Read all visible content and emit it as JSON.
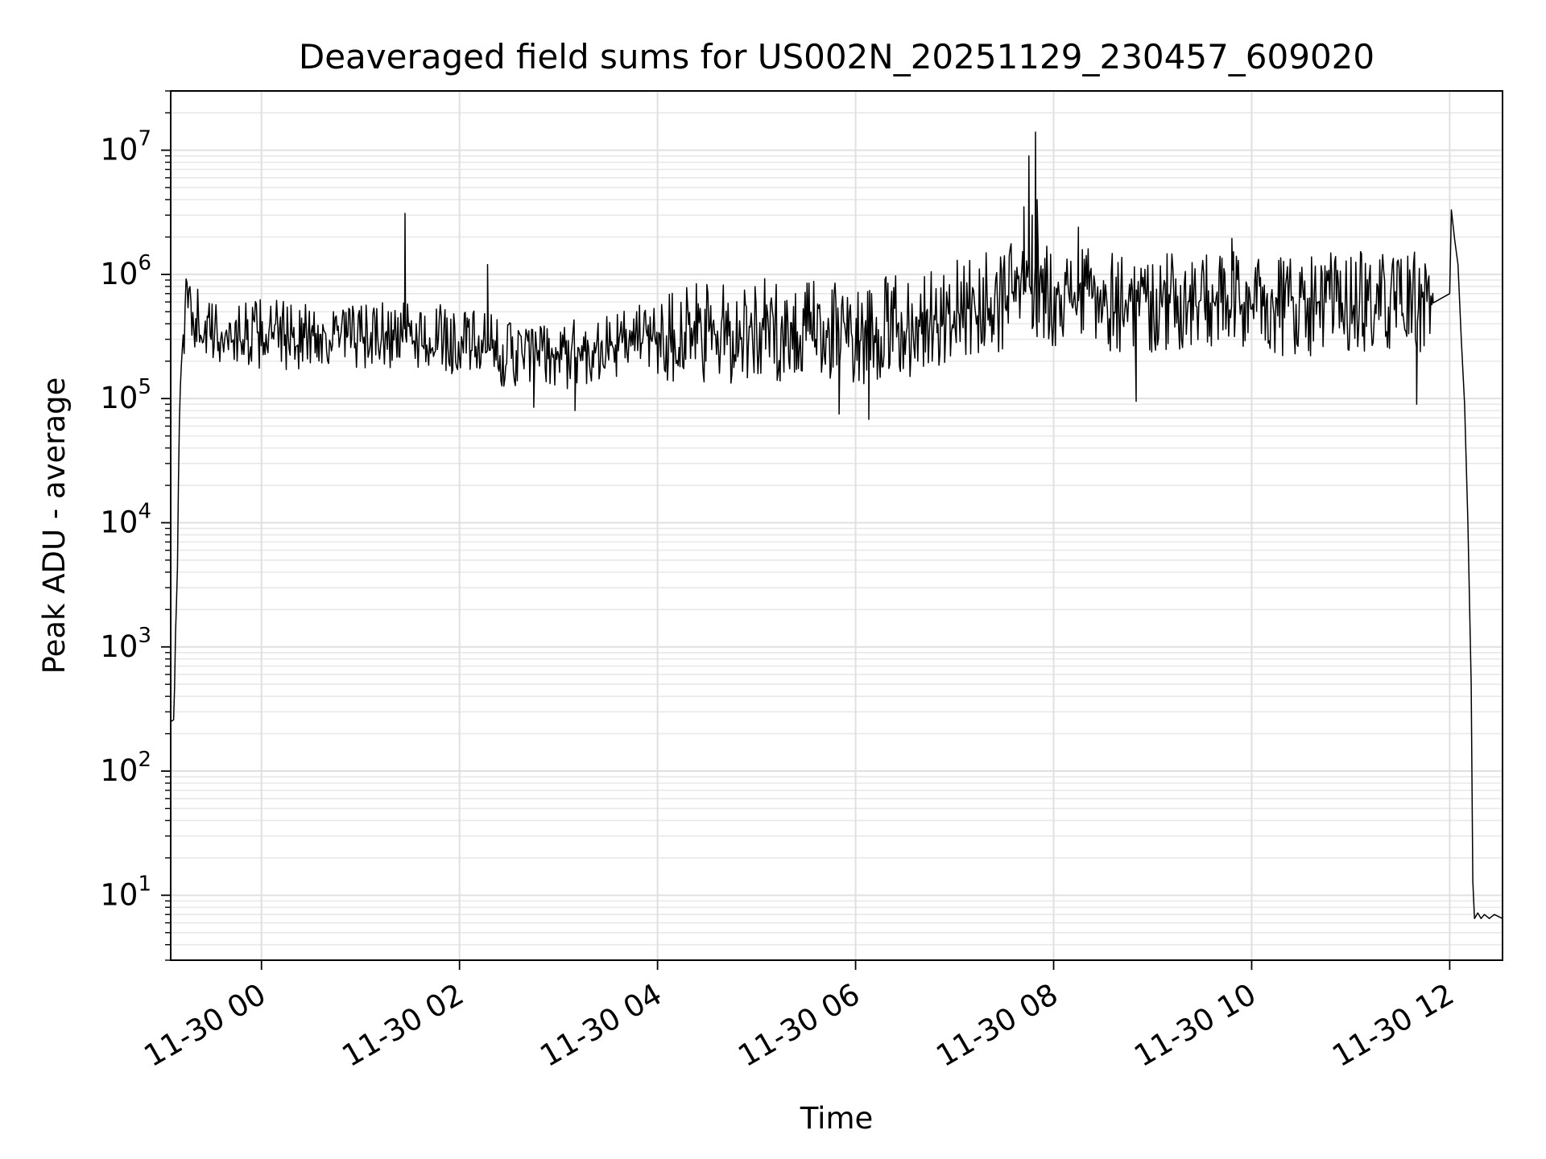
{
  "chart_data": {
    "type": "line",
    "title": "Deaveraged field sums for US002N_20251129_230457_609020",
    "xlabel": "Time",
    "ylabel": "Peak ADU - average",
    "yscale": "log",
    "xlim": [
      "2025-11-29 23:05",
      "2025-11-30 12:32"
    ],
    "ylim": [
      3,
      30000000
    ],
    "grid": true,
    "line_color": "#000000",
    "xticks": [
      {
        "t": "2025-11-30 00:00",
        "label": "11-30 00"
      },
      {
        "t": "2025-11-30 02:00",
        "label": "11-30 02"
      },
      {
        "t": "2025-11-30 04:00",
        "label": "11-30 04"
      },
      {
        "t": "2025-11-30 06:00",
        "label": "11-30 06"
      },
      {
        "t": "2025-11-30 08:00",
        "label": "11-30 08"
      },
      {
        "t": "2025-11-30 10:00",
        "label": "11-30 10"
      },
      {
        "t": "2025-11-30 12:00",
        "label": "11-30 12"
      }
    ],
    "yticks": [
      {
        "value": 10,
        "base": "10",
        "exp": "1"
      },
      {
        "value": 100,
        "base": "10",
        "exp": "2"
      },
      {
        "value": 1000,
        "base": "10",
        "exp": "3"
      },
      {
        "value": 10000,
        "base": "10",
        "exp": "4"
      },
      {
        "value": 100000,
        "base": "10",
        "exp": "5"
      },
      {
        "value": 1000000,
        "base": "10",
        "exp": "6"
      },
      {
        "value": 10000000,
        "base": "10",
        "exp": "7"
      }
    ],
    "series": [
      {
        "style": "noisy",
        "points": [
          {
            "t": "2025-11-29 23:05",
            "v": 250
          },
          {
            "t": "2025-11-29 23:07",
            "v": 260
          },
          {
            "t": "2025-11-29 23:08",
            "v": 1500
          },
          {
            "t": "2025-11-29 23:09",
            "v": 3500
          },
          {
            "t": "2025-11-29 23:10",
            "v": 50000
          },
          {
            "t": "2025-11-29 23:11",
            "v": 150000
          },
          {
            "t": "2025-11-29 23:13",
            "v": 400000
          },
          {
            "t": "2025-11-29 23:15",
            "v": 600000
          },
          {
            "t": "2025-11-29 23:20",
            "v": 450000
          },
          {
            "t": "2025-11-29 23:30",
            "v": 320000
          },
          {
            "t": "2025-11-30 00:00",
            "v": 330000
          },
          {
            "t": "2025-11-30 01:00",
            "v": 310000
          },
          {
            "t": "2025-11-30 01:30",
            "v": 320000
          },
          {
            "t": "2025-11-30 02:00",
            "v": 290000
          },
          {
            "t": "2025-11-30 02:30",
            "v": 230000
          },
          {
            "t": "2025-11-30 03:00",
            "v": 220000
          },
          {
            "t": "2025-11-30 03:30",
            "v": 260000
          },
          {
            "t": "2025-11-30 04:00",
            "v": 340000
          },
          {
            "t": "2025-11-30 04:30",
            "v": 320000
          },
          {
            "t": "2025-11-30 05:00",
            "v": 360000
          },
          {
            "t": "2025-11-30 05:30",
            "v": 350000
          },
          {
            "t": "2025-11-30 06:00",
            "v": 340000
          },
          {
            "t": "2025-11-30 06:30",
            "v": 380000
          },
          {
            "t": "2025-11-30 07:00",
            "v": 500000
          },
          {
            "t": "2025-11-30 07:30",
            "v": 620000
          },
          {
            "t": "2025-11-30 07:40",
            "v": 750000
          },
          {
            "t": "2025-11-30 08:30",
            "v": 620000
          },
          {
            "t": "2025-11-30 09:00",
            "v": 600000
          },
          {
            "t": "2025-11-30 10:00",
            "v": 580000
          },
          {
            "t": "2025-11-30 11:00",
            "v": 580000
          },
          {
            "t": "2025-11-30 11:50",
            "v": 590000
          }
        ]
      },
      {
        "style": "exact",
        "points": [
          {
            "t": "2025-11-30 11:50",
            "v": 590000
          },
          {
            "t": "2025-11-30 12:00",
            "v": 700000
          },
          {
            "t": "2025-11-30 12:01",
            "v": 3300000
          },
          {
            "t": "2025-11-30 12:03",
            "v": 1900000
          },
          {
            "t": "2025-11-30 12:05",
            "v": 1200000
          },
          {
            "t": "2025-11-30 12:07",
            "v": 300000
          },
          {
            "t": "2025-11-30 12:09",
            "v": 90000
          },
          {
            "t": "2025-11-30 12:11",
            "v": 10000
          },
          {
            "t": "2025-11-30 12:13",
            "v": 500
          },
          {
            "t": "2025-11-30 12:14",
            "v": 13
          },
          {
            "t": "2025-11-30 12:15",
            "v": 6.5
          },
          {
            "t": "2025-11-30 12:17",
            "v": 7.2
          },
          {
            "t": "2025-11-30 12:19",
            "v": 6.5
          },
          {
            "t": "2025-11-30 12:21",
            "v": 7.0
          },
          {
            "t": "2025-11-30 12:24",
            "v": 6.5
          },
          {
            "t": "2025-11-30 12:27",
            "v": 7.0
          },
          {
            "t": "2025-11-30 12:32",
            "v": 6.5
          }
        ]
      }
    ],
    "spikes": [
      {
        "t": "2025-11-30 01:27",
        "v": 3100000
      },
      {
        "t": "2025-11-30 02:17",
        "v": 1200000
      },
      {
        "t": "2025-11-30 07:42",
        "v": 3500000
      },
      {
        "t": "2025-11-30 07:45",
        "v": 9000000
      },
      {
        "t": "2025-11-30 07:47",
        "v": 3000000
      },
      {
        "t": "2025-11-30 07:49",
        "v": 14000000
      },
      {
        "t": "2025-11-30 07:50",
        "v": 4000000
      },
      {
        "t": "2025-11-30 08:15",
        "v": 2400000
      },
      {
        "t": "2025-11-30 09:48",
        "v": 1950000
      },
      {
        "t": "2025-11-30 12:01",
        "v": 3300000
      }
    ],
    "dips": [
      {
        "t": "2025-11-30 05:50",
        "v": 75000
      },
      {
        "t": "2025-11-30 06:08",
        "v": 68000
      },
      {
        "t": "2025-11-30 03:10",
        "v": 80000
      },
      {
        "t": "2025-11-30 02:45",
        "v": 85000
      },
      {
        "t": "2025-11-30 08:50",
        "v": 95000
      },
      {
        "t": "2025-11-30 11:40",
        "v": 90000
      }
    ]
  }
}
